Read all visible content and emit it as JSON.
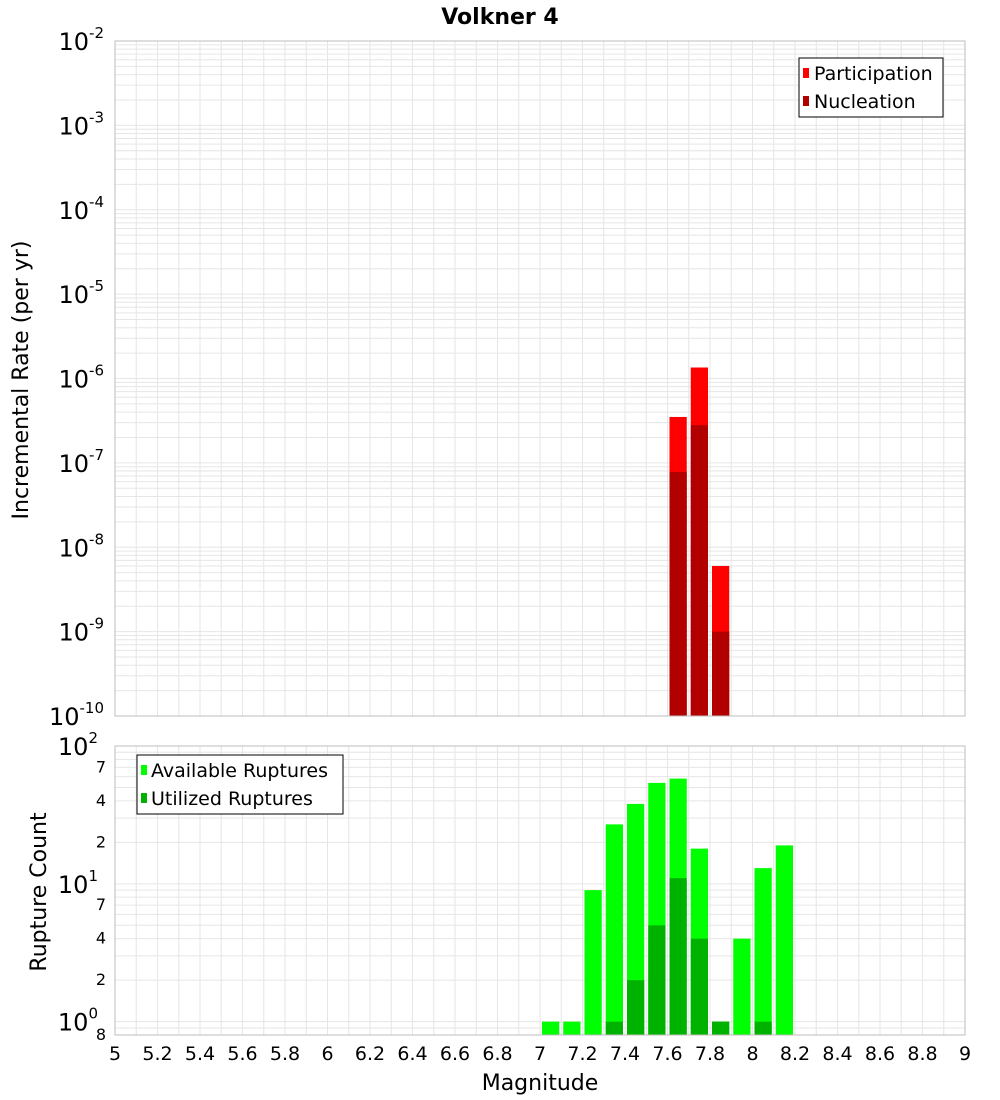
{
  "title": "Volkner 4",
  "colors": {
    "participation": "#ff0000",
    "nucleation": "#b20000",
    "available": "#00ff00",
    "utilized": "#00b200",
    "grid": "#e6e6e6",
    "frame": "#bdbdbd"
  },
  "chart_data": [
    {
      "type": "bar",
      "panel": "top",
      "title": "Volkner 4",
      "xlabel": "",
      "ylabel": "Incremental Rate (per yr)",
      "yscale": "log",
      "xlim": [
        5,
        9
      ],
      "ylim": [
        1e-10,
        0.01
      ],
      "grid": true,
      "legend_position": "top-right",
      "y_ticks": [
        {
          "base": "10",
          "exp": "-2",
          "value": 0.01
        },
        {
          "base": "10",
          "exp": "-3",
          "value": 0.001
        },
        {
          "base": "10",
          "exp": "-4",
          "value": 0.0001
        },
        {
          "base": "10",
          "exp": "-5",
          "value": 1e-05
        },
        {
          "base": "10",
          "exp": "-6",
          "value": 1e-06
        },
        {
          "base": "10",
          "exp": "-7",
          "value": 1e-07
        },
        {
          "base": "10",
          "exp": "-8",
          "value": 1e-08
        },
        {
          "base": "10",
          "exp": "-9",
          "value": 1e-09
        },
        {
          "base": "10",
          "exp": "-10",
          "value": 1e-10
        }
      ],
      "series": [
        {
          "name": "Participation",
          "x": [
            7.65,
            7.75,
            7.85
          ],
          "values": [
            3.5e-07,
            1.35e-06,
            6e-09
          ]
        },
        {
          "name": "Nucleation",
          "x": [
            7.65,
            7.75,
            7.85
          ],
          "values": [
            7.8e-08,
            2.8e-07,
            1e-09
          ]
        }
      ]
    },
    {
      "type": "bar",
      "panel": "bottom",
      "xlabel": "Magnitude",
      "ylabel": "Rupture Count",
      "yscale": "log",
      "xlim": [
        5,
        9
      ],
      "ylim": [
        0.8,
        100
      ],
      "grid": true,
      "legend_position": "top-left",
      "x_ticks": [
        "5",
        "5.2",
        "5.4",
        "5.6",
        "5.8",
        "6",
        "6.2",
        "6.4",
        "6.6",
        "6.8",
        "7",
        "7.2",
        "7.4",
        "7.6",
        "7.8",
        "8",
        "8.2",
        "8.4",
        "8.6",
        "8.8",
        "9"
      ],
      "y_major_ticks": [
        {
          "base": "10",
          "exp": "2",
          "value": 100
        },
        {
          "base": "10",
          "exp": "1",
          "value": 10
        },
        {
          "base": "10",
          "exp": "0",
          "value": 1
        }
      ],
      "y_minor_ticks": [
        {
          "label": "7",
          "value": 70
        },
        {
          "label": "4",
          "value": 40
        },
        {
          "label": "2",
          "value": 20
        },
        {
          "label": "7",
          "value": 7
        },
        {
          "label": "4",
          "value": 4
        },
        {
          "label": "2",
          "value": 2
        },
        {
          "label": "8",
          "value": 0.8
        }
      ],
      "series": [
        {
          "name": "Available Ruptures",
          "x": [
            7.05,
            7.15,
            7.25,
            7.35,
            7.45,
            7.55,
            7.65,
            7.75,
            7.85,
            7.95,
            8.05,
            8.15
          ],
          "values": [
            1,
            1,
            9,
            27,
            38,
            54,
            58,
            18,
            1,
            4,
            13,
            19
          ]
        },
        {
          "name": "Utilized Ruptures",
          "x": [
            7.35,
            7.45,
            7.55,
            7.65,
            7.75,
            7.85,
            8.05
          ],
          "values": [
            1,
            2,
            5,
            11,
            4,
            1,
            1
          ]
        }
      ]
    }
  ]
}
